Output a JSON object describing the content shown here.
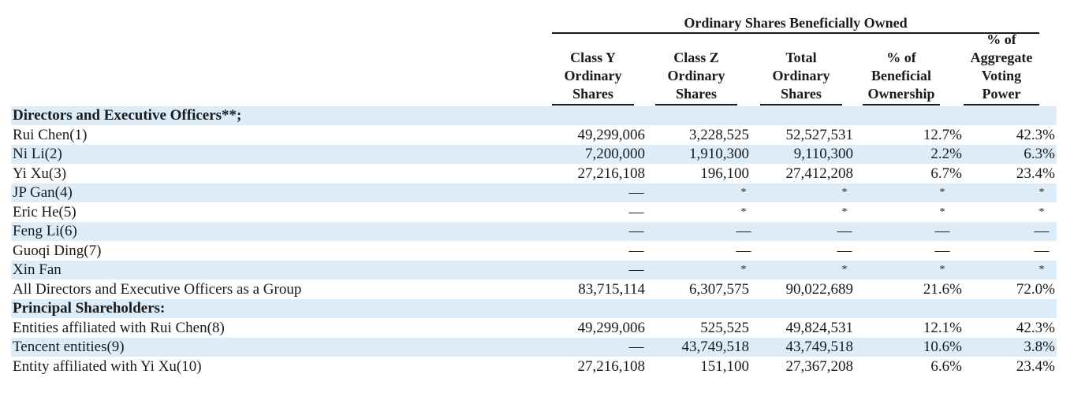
{
  "table": {
    "super_header": "Ordinary Shares Beneficially Owned",
    "columns": [
      {
        "lines": [
          "Class Y",
          "Ordinary",
          "Shares"
        ]
      },
      {
        "lines": [
          "Class Z",
          "Ordinary",
          "Shares"
        ]
      },
      {
        "lines": [
          "Total",
          "Ordinary",
          "Shares"
        ]
      },
      {
        "lines": [
          "% of",
          "Beneficial",
          "Ownership"
        ]
      },
      {
        "lines": [
          "% of",
          "Aggregate",
          "Voting",
          "Power"
        ]
      }
    ],
    "rows": [
      {
        "label": "Directors and Executive Officers**;",
        "section": true,
        "cells": [
          "",
          "",
          "",
          "",
          ""
        ]
      },
      {
        "label": "Rui Chen(1)",
        "cells": [
          "49,299,006",
          "3,228,525",
          "52,527,531",
          "12.7%",
          "42.3%"
        ]
      },
      {
        "label": "Ni Li(2)",
        "cells": [
          "7,200,000",
          "1,910,300",
          "9,110,300",
          "2.2%",
          "6.3%"
        ]
      },
      {
        "label": "Yi Xu(3)",
        "cells": [
          "27,216,108",
          "196,100",
          "27,412,208",
          "6.7%",
          "23.4%"
        ]
      },
      {
        "label": "JP Gan(4)",
        "cells": [
          "—",
          "*",
          "*",
          "*",
          "*"
        ]
      },
      {
        "label": "Eric He(5)",
        "cells": [
          "—",
          "*",
          "*",
          "*",
          "*"
        ]
      },
      {
        "label": "Feng Li(6)",
        "cells": [
          "—",
          "—",
          "—",
          "—",
          "—"
        ]
      },
      {
        "label": "Guoqi Ding(7)",
        "cells": [
          "—",
          "—",
          "—",
          "—",
          "—"
        ]
      },
      {
        "label": "Xin Fan",
        "cells": [
          "—",
          "*",
          "*",
          "*",
          "*"
        ]
      },
      {
        "label": "All Directors and Executive Officers as a Group",
        "cells": [
          "83,715,114",
          "6,307,575",
          "90,022,689",
          "21.6%",
          "72.0%"
        ]
      },
      {
        "label": "Principal Shareholders:",
        "section": true,
        "cells": [
          "",
          "",
          "",
          "",
          ""
        ]
      },
      {
        "label": "Entities affiliated with Rui Chen(8)",
        "cells": [
          "49,299,006",
          "525,525",
          "49,824,531",
          "12.1%",
          "42.3%"
        ]
      },
      {
        "label": "Tencent entities(9)",
        "cells": [
          "—",
          "43,749,518",
          "43,749,518",
          "10.6%",
          "3.8%"
        ]
      },
      {
        "label": "Entity affiliated with Yi Xu(10)",
        "cells": [
          "27,216,108",
          "151,100",
          "27,367,208",
          "6.6%",
          "23.4%"
        ]
      }
    ]
  },
  "colors": {
    "shade": "#dcedf9",
    "text": "#1a1a1a"
  }
}
